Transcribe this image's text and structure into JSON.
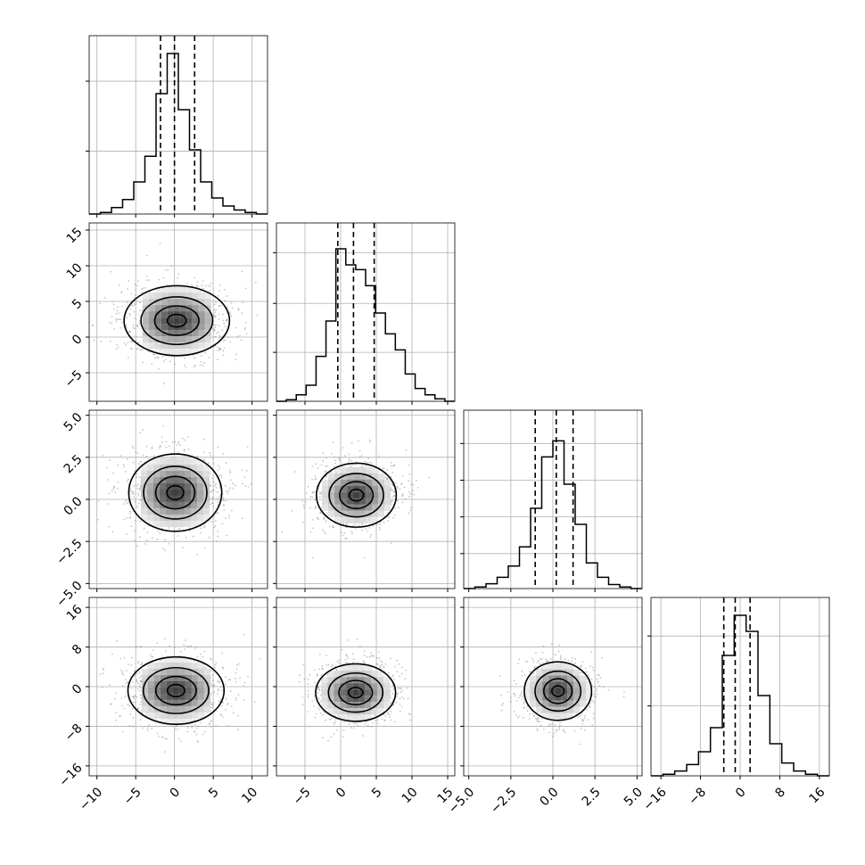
{
  "chart_data": {
    "type": "corner",
    "params": [
      {
        "range": [
          -11,
          12
        ],
        "ticks": [
          -10,
          -5,
          0,
          5,
          10
        ],
        "tick_labels": [
          "−10",
          "−5",
          "0",
          "5",
          "10"
        ],
        "quantiles": [
          -1.8,
          0.0,
          2.6
        ],
        "hist": [
          0.0,
          0.01,
          0.04,
          0.09,
          0.2,
          0.36,
          0.75,
          1.0,
          0.65,
          0.4,
          0.2,
          0.1,
          0.05,
          0.025,
          0.01,
          0.0
        ],
        "hist_yticks": [
          0.36,
          0.76
        ]
      },
      {
        "range": [
          -9,
          16
        ],
        "ticks": [
          -5,
          0,
          5,
          10,
          15
        ],
        "tick_labels": [
          "−5",
          "0",
          "5",
          "10",
          "15"
        ],
        "quantiles": [
          -0.4,
          1.8,
          4.7
        ],
        "hist": [
          0.0,
          0.01,
          0.04,
          0.1,
          0.28,
          0.5,
          0.95,
          0.85,
          0.82,
          0.72,
          0.55,
          0.42,
          0.32,
          0.17,
          0.08,
          0.04,
          0.015,
          0.0
        ],
        "hist_yticks": [
          0.28,
          0.56,
          0.85
        ]
      },
      {
        "range": [
          -5.3,
          5.3
        ],
        "ticks": [
          -5.0,
          -2.5,
          0.0,
          2.5,
          5.0
        ],
        "tick_labels": [
          "−5.0",
          "−2.5",
          "0.0",
          "2.5",
          "5.0"
        ],
        "quantiles": [
          -1.05,
          0.2,
          1.2
        ],
        "hist": [
          0.0,
          0.01,
          0.03,
          0.07,
          0.14,
          0.26,
          0.5,
          0.82,
          0.92,
          0.65,
          0.4,
          0.16,
          0.07,
          0.025,
          0.01,
          0.0
        ],
        "hist_yticks": [
          0.2,
          0.41,
          0.62,
          0.83
        ]
      },
      {
        "range": [
          -18,
          18
        ],
        "ticks": [
          -16,
          -8,
          0,
          8,
          16
        ],
        "tick_labels": [
          "−16",
          "−8",
          "0",
          "8",
          "16"
        ],
        "quantiles": [
          -3.3,
          -1.0,
          2.0
        ],
        "hist": [
          0.0,
          0.01,
          0.03,
          0.07,
          0.15,
          0.3,
          0.75,
          1.0,
          0.9,
          0.5,
          0.2,
          0.08,
          0.03,
          0.01,
          0.0
        ],
        "hist_yticks": [
          0.4,
          0.8
        ]
      }
    ],
    "contours": [
      {
        "row": 1,
        "col": 0,
        "center": [
          0.3,
          2.3
        ],
        "spread": [
          6.8,
          4.9
        ]
      },
      {
        "row": 2,
        "col": 0,
        "center": [
          0.1,
          0.4
        ],
        "spread": [
          6.0,
          2.3
        ]
      },
      {
        "row": 2,
        "col": 1,
        "center": [
          2.2,
          0.25
        ],
        "spread": [
          5.6,
          1.9
        ]
      },
      {
        "row": 3,
        "col": 0,
        "center": [
          0.2,
          -0.8
        ],
        "spread": [
          6.2,
          6.8
        ]
      },
      {
        "row": 3,
        "col": 1,
        "center": [
          2.1,
          -1.2
        ],
        "spread": [
          5.6,
          5.8
        ]
      },
      {
        "row": 3,
        "col": 2,
        "center": [
          0.3,
          -0.9
        ],
        "spread": [
          2.0,
          5.9
        ]
      }
    ],
    "grid": true
  }
}
